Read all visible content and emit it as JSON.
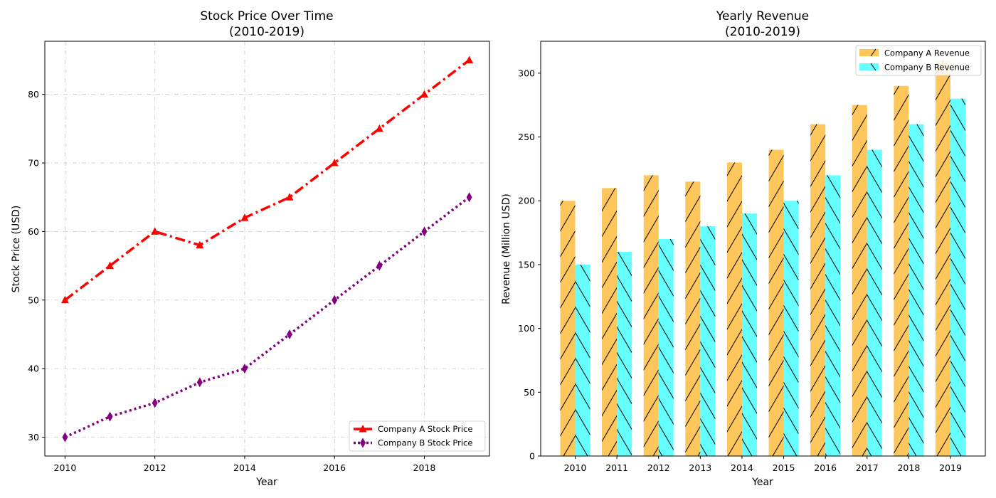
{
  "colors": {
    "company_a_line": "#ff0000",
    "company_b_line": "#800080",
    "company_a_bar": "#ffc65c",
    "company_b_bar": "#66ffff",
    "grid": "#cccccc"
  },
  "chart_data": [
    {
      "type": "line",
      "title_line1": "Stock Price Over Time",
      "title_line2": "(2010-2019)",
      "xlabel": "Year",
      "ylabel": "Stock Price (USD)",
      "x": [
        2010,
        2011,
        2012,
        2013,
        2014,
        2015,
        2016,
        2017,
        2018,
        2019
      ],
      "xlim": [
        2009.55,
        2019.45
      ],
      "ylim": [
        27.25,
        87.75
      ],
      "xticks": [
        "2010",
        "2012",
        "2014",
        "2016",
        "2018"
      ],
      "xtick_values": [
        2010,
        2012,
        2014,
        2016,
        2018
      ],
      "yticks": [
        "30",
        "40",
        "50",
        "60",
        "70",
        "80"
      ],
      "ytick_values": [
        30,
        40,
        50,
        60,
        70,
        80
      ],
      "grid": true,
      "legend_position": "lower-right",
      "series": [
        {
          "name": "Company A Stock Price",
          "values": [
            50,
            55,
            60,
            58,
            62,
            65,
            70,
            75,
            80,
            85
          ],
          "style": "dash-dot",
          "marker": "triangle"
        },
        {
          "name": "Company B Stock Price",
          "values": [
            30,
            33,
            35,
            38,
            40,
            45,
            50,
            55,
            60,
            65
          ],
          "style": "dotted",
          "marker": "diamond"
        }
      ]
    },
    {
      "type": "bar",
      "title_line1": "Yearly Revenue",
      "title_line2": "(2010-2019)",
      "xlabel": "Year",
      "ylabel": "Revenue (Million USD)",
      "categories": [
        "2010",
        "2011",
        "2012",
        "2013",
        "2014",
        "2015",
        "2016",
        "2017",
        "2018",
        "2019"
      ],
      "ylim": [
        0,
        325
      ],
      "yticks": [
        "0",
        "50",
        "100",
        "150",
        "200",
        "250",
        "300"
      ],
      "ytick_values": [
        0,
        50,
        100,
        150,
        200,
        250,
        300
      ],
      "grid": false,
      "legend_position": "upper-right",
      "series": [
        {
          "name": "Company A Revenue",
          "values": [
            200,
            210,
            220,
            215,
            230,
            240,
            260,
            275,
            290,
            310
          ],
          "hatch": "forward"
        },
        {
          "name": "Company B Revenue",
          "values": [
            150,
            160,
            170,
            180,
            190,
            200,
            220,
            240,
            260,
            280
          ],
          "hatch": "back"
        }
      ]
    }
  ]
}
